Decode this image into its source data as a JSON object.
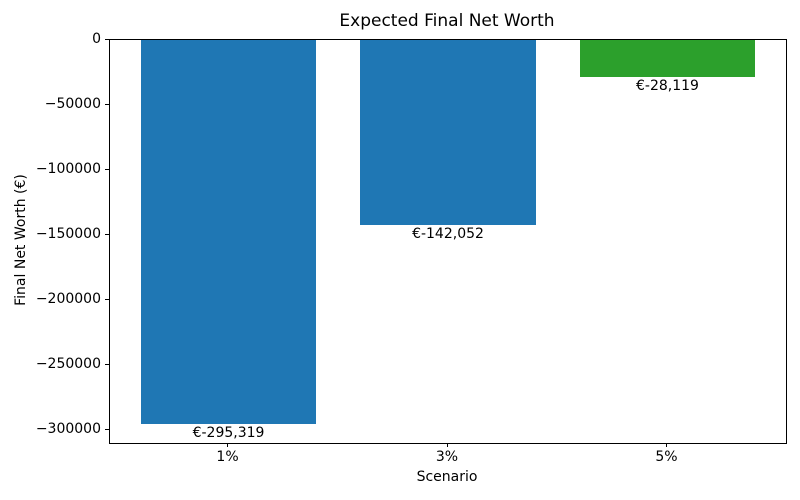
{
  "chart_data": {
    "type": "bar",
    "title": "Expected Final Net Worth",
    "xlabel": "Scenario",
    "ylabel": "Final Net Worth (€)",
    "categories": [
      "1%",
      "3%",
      "5%"
    ],
    "values": [
      -295319,
      -142052,
      -28119
    ],
    "bar_labels": [
      "€-295,319",
      "€-142,052",
      "€-28,119"
    ],
    "bar_colors": [
      "#1f77b4",
      "#1f77b4",
      "#2ca02c"
    ],
    "ylim": [
      -310085,
      0
    ],
    "yticks": [
      0,
      -50000,
      -100000,
      -150000,
      -200000,
      -250000,
      -300000
    ],
    "ytick_labels": [
      "0",
      "−50000",
      "−100000",
      "−150000",
      "−200000",
      "−250000",
      "−300000"
    ],
    "grid": false,
    "legend_position": "none",
    "spine_color": "#000000"
  }
}
